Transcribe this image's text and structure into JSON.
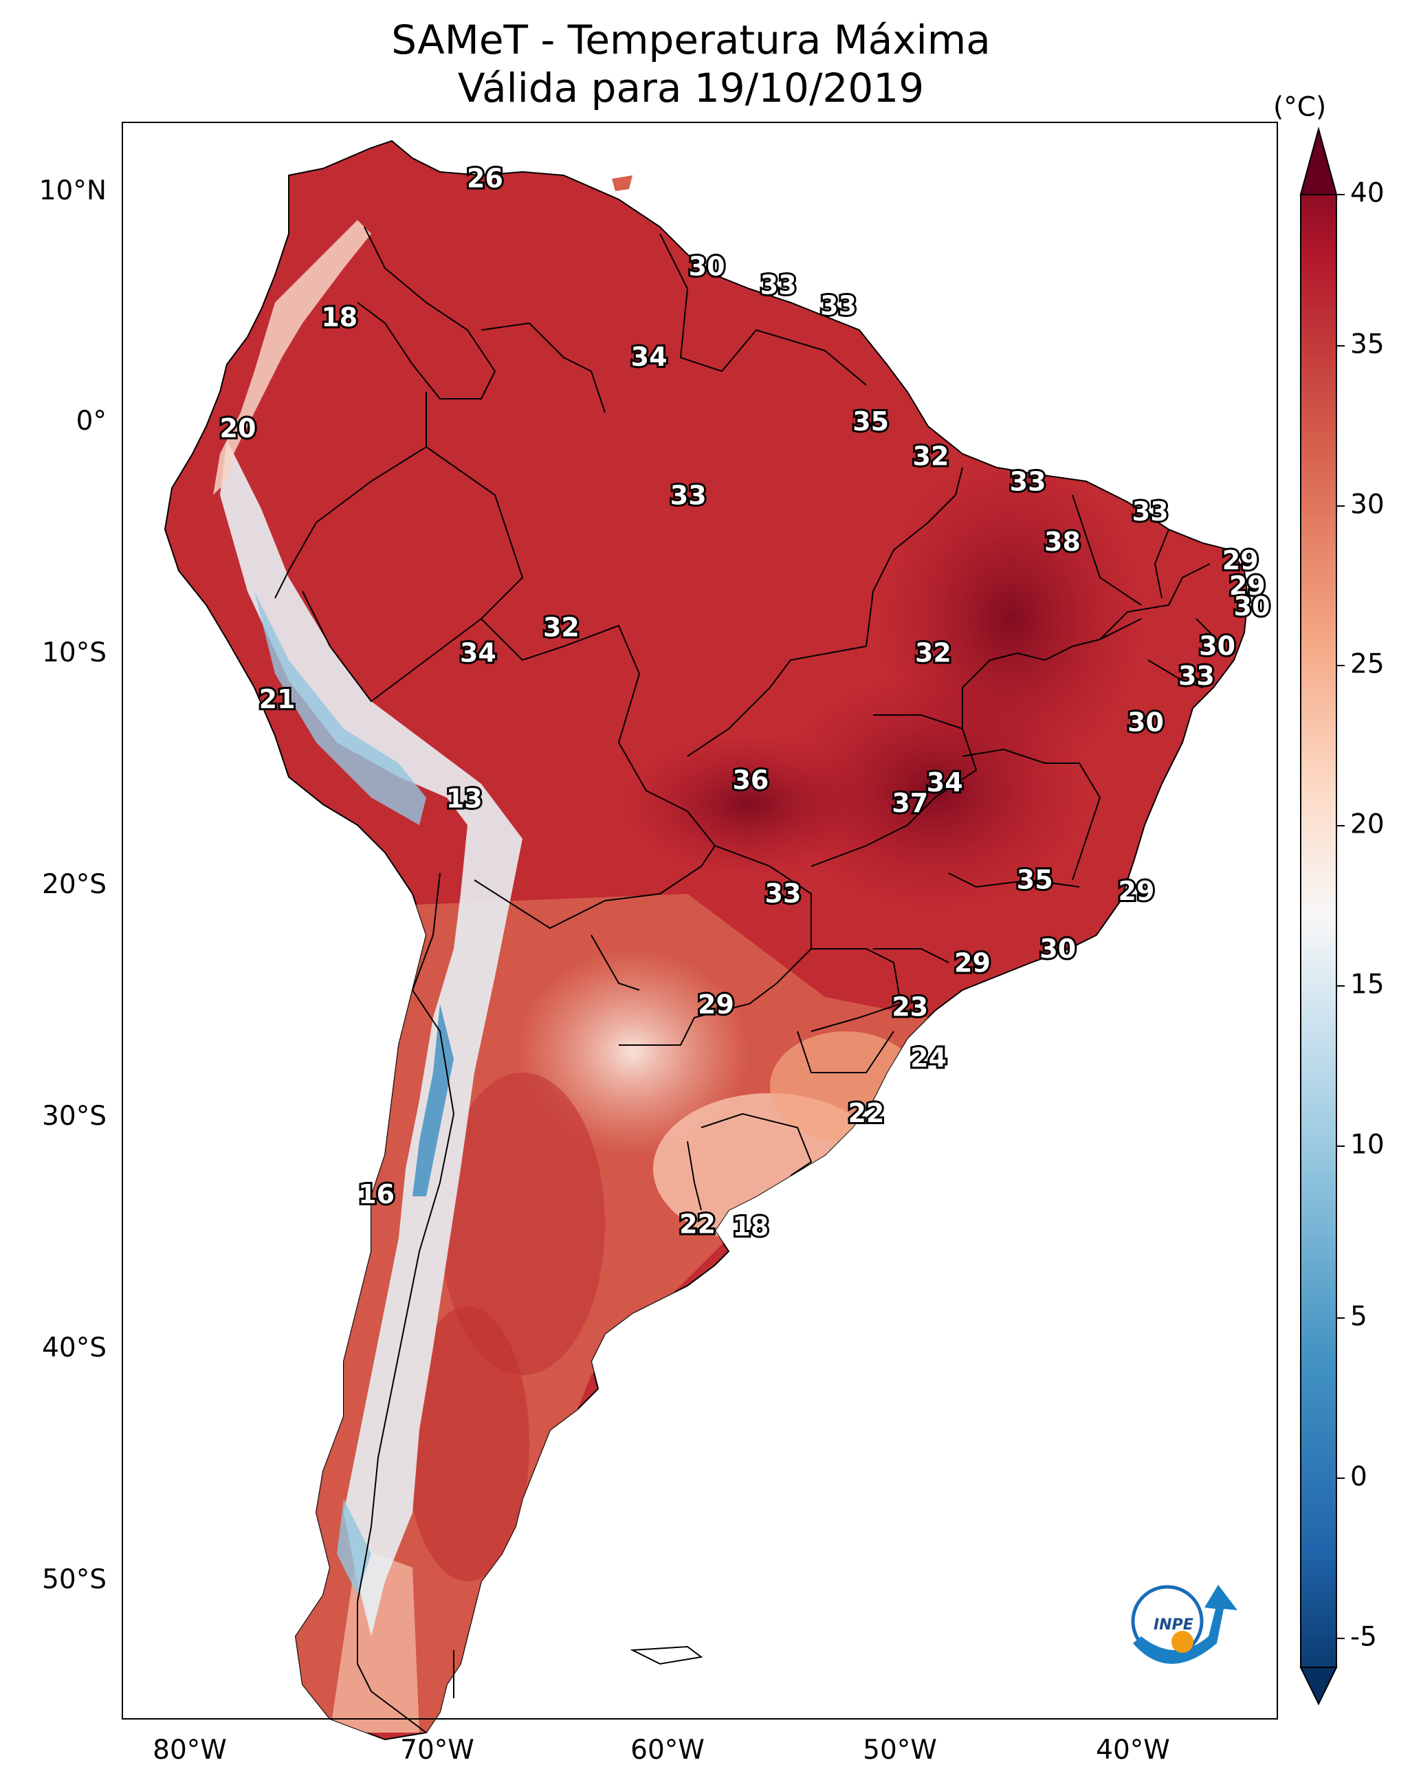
{
  "figure": {
    "title_line1": "SAMeT - Temperatura Máxima",
    "title_line2": "Válida para 19/10/2019",
    "logo_text": "INPE"
  },
  "axes": {
    "longitude_ticks": [
      "80°W",
      "70°W",
      "60°W",
      "50°W",
      "40°W"
    ],
    "latitude_ticks": [
      "10°N",
      "0°",
      "10°S",
      "20°S",
      "30°S",
      "40°S",
      "50°S"
    ],
    "lon_range": [
      -83,
      -33
    ],
    "lat_range": [
      -56,
      13
    ]
  },
  "colorbar": {
    "unit_label": "(°C)",
    "tick_labels": [
      "40",
      "35",
      "30",
      "25",
      "20",
      "15",
      "10",
      "5",
      "0",
      "-5"
    ],
    "range": [
      -5,
      40
    ],
    "extend": "both",
    "colors": [
      "#053061",
      "#2166ac",
      "#4393c3",
      "#92c5de",
      "#d1e5f0",
      "#f7f7f7",
      "#fddbc7",
      "#f4a582",
      "#d6604d",
      "#b2182b",
      "#67001f"
    ]
  },
  "labels": [
    {
      "text": "26",
      "lon": -67.3,
      "lat": 10.5
    },
    {
      "text": "18",
      "lon": -73.6,
      "lat": 4.5
    },
    {
      "text": "30",
      "lon": -57.7,
      "lat": 6.7
    },
    {
      "text": "33",
      "lon": -54.6,
      "lat": 5.9
    },
    {
      "text": "33",
      "lon": -52.0,
      "lat": 5.0
    },
    {
      "text": "34",
      "lon": -60.2,
      "lat": 2.8
    },
    {
      "text": "20",
      "lon": -78.0,
      "lat": -0.3
    },
    {
      "text": "35",
      "lon": -50.6,
      "lat": 0.0
    },
    {
      "text": "32",
      "lon": -48.0,
      "lat": -1.5
    },
    {
      "text": "33",
      "lon": -58.5,
      "lat": -3.2
    },
    {
      "text": "33",
      "lon": -43.8,
      "lat": -2.6
    },
    {
      "text": "33",
      "lon": -38.5,
      "lat": -3.9
    },
    {
      "text": "38",
      "lon": -42.3,
      "lat": -5.2
    },
    {
      "text": "29",
      "lon": -34.6,
      "lat": -6.0
    },
    {
      "text": "29",
      "lon": -34.3,
      "lat": -7.1
    },
    {
      "text": "30",
      "lon": -34.1,
      "lat": -8.0
    },
    {
      "text": "32",
      "lon": -64.0,
      "lat": -8.9
    },
    {
      "text": "34",
      "lon": -67.6,
      "lat": -10.0
    },
    {
      "text": "32",
      "lon": -47.9,
      "lat": -10.0
    },
    {
      "text": "30",
      "lon": -35.6,
      "lat": -9.7
    },
    {
      "text": "33",
      "lon": -36.5,
      "lat": -11.0
    },
    {
      "text": "21",
      "lon": -76.3,
      "lat": -12.0
    },
    {
      "text": "30",
      "lon": -38.7,
      "lat": -13.0
    },
    {
      "text": "36",
      "lon": -55.8,
      "lat": -15.5
    },
    {
      "text": "34",
      "lon": -47.4,
      "lat": -15.6
    },
    {
      "text": "37",
      "lon": -48.9,
      "lat": -16.5
    },
    {
      "text": "13",
      "lon": -68.2,
      "lat": -16.3
    },
    {
      "text": "35",
      "lon": -43.5,
      "lat": -19.8
    },
    {
      "text": "29",
      "lon": -39.1,
      "lat": -20.3
    },
    {
      "text": "33",
      "lon": -54.4,
      "lat": -20.4
    },
    {
      "text": "30",
      "lon": -42.5,
      "lat": -22.8
    },
    {
      "text": "29",
      "lon": -46.2,
      "lat": -23.4
    },
    {
      "text": "29",
      "lon": -57.3,
      "lat": -25.2
    },
    {
      "text": "23",
      "lon": -48.9,
      "lat": -25.3
    },
    {
      "text": "24",
      "lon": -48.1,
      "lat": -27.5
    },
    {
      "text": "22",
      "lon": -50.8,
      "lat": -29.9
    },
    {
      "text": "16",
      "lon": -72.0,
      "lat": -33.4
    },
    {
      "text": "22",
      "lon": -58.1,
      "lat": -34.7
    },
    {
      "text": "18",
      "lon": -55.8,
      "lat": -34.8
    }
  ]
}
